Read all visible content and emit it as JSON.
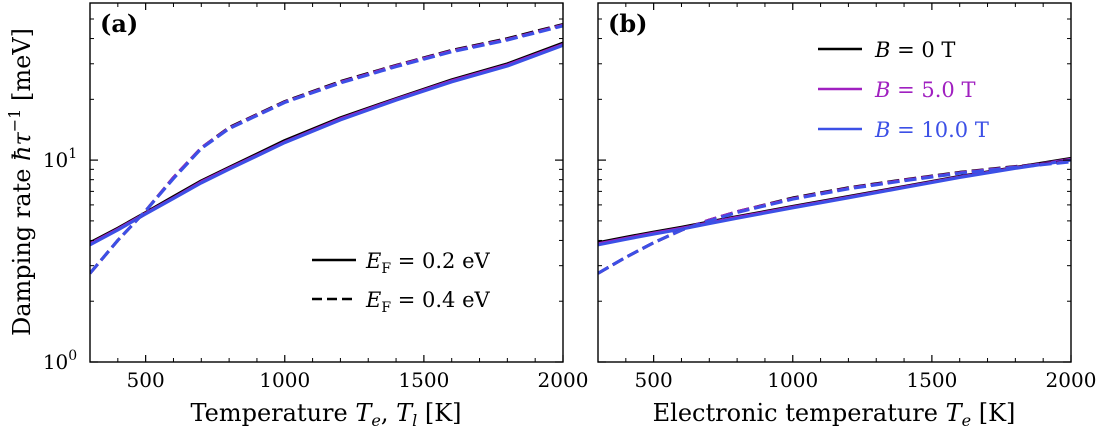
{
  "chart_data": [
    {
      "panel": "(a)",
      "type": "line",
      "xlabel": "Temperature T_e, T_l [K]",
      "xlabel_parts": {
        "main": "Temperature ",
        "v1": "T",
        "s1": "e",
        "sep": ", ",
        "v2": "T",
        "s2": "l",
        "unit": " [K]"
      },
      "ylabel": "Damping rate ħτ⁻¹ [meV]",
      "ylabel_parts": {
        "main": "Damping rate ",
        "hbar": "ħ",
        "tau": "τ",
        "sup": "−1",
        "unit": " [meV]"
      },
      "xlim": [
        300,
        2000
      ],
      "ylim": [
        1,
        60
      ],
      "yscale": "log",
      "xticks": [
        "500",
        "1000",
        "1500",
        "2000"
      ],
      "xtick_values": [
        500,
        1000,
        1500,
        2000
      ],
      "yticks": [
        {
          "base": "10",
          "exp": "0",
          "value": 1
        },
        {
          "base": "10",
          "exp": "1",
          "value": 10
        }
      ],
      "legend": {
        "placement": "lower-right",
        "entries": [
          {
            "style": "solid",
            "sym": "E",
            "sub": "F",
            "text": " = 0.2 eV"
          },
          {
            "style": "dashed",
            "sym": "E",
            "sub": "F",
            "text": " = 0.4 eV"
          }
        ]
      },
      "x": [
        300,
        400,
        500,
        600,
        700,
        800,
        1000,
        1200,
        1400,
        1600,
        1800,
        2000
      ],
      "series": [
        {
          "group": "E_F = 0.2 eV",
          "style": "solid",
          "color": "#000000",
          "values": [
            3.9,
            4.6,
            5.5,
            6.6,
            7.9,
            9.2,
            12.5,
            16.2,
            20.2,
            25.0,
            30.0,
            38.0
          ]
        },
        {
          "group": "E_F = 0.2 eV",
          "style": "solid",
          "color": "#a020c0",
          "values": [
            3.85,
            4.55,
            5.45,
            6.5,
            7.8,
            9.1,
            12.3,
            16.0,
            20.0,
            24.7,
            29.6,
            37.4
          ]
        },
        {
          "group": "E_F = 0.2 eV",
          "style": "solid",
          "color": "#3c50e6",
          "values": [
            3.8,
            4.5,
            5.4,
            6.45,
            7.7,
            9.0,
            12.2,
            15.8,
            19.8,
            24.4,
            29.2,
            37.0
          ]
        },
        {
          "group": "E_F = 0.4 eV",
          "style": "dashed",
          "color": "#000000",
          "values": [
            2.75,
            4.0,
            5.6,
            8.2,
            11.5,
            14.5,
            19.5,
            24.5,
            29.5,
            35.0,
            40.0,
            47.0
          ]
        },
        {
          "group": "E_F = 0.4 eV",
          "style": "dashed",
          "color": "#a020c0",
          "values": [
            2.75,
            4.0,
            5.6,
            8.2,
            11.5,
            14.4,
            19.4,
            24.3,
            29.3,
            34.7,
            39.6,
            46.6
          ]
        },
        {
          "group": "E_F = 0.4 eV",
          "style": "dashed",
          "color": "#3c50e6",
          "values": [
            2.75,
            4.0,
            5.6,
            8.1,
            11.4,
            14.3,
            19.3,
            24.1,
            29.0,
            34.4,
            39.3,
            46.2
          ]
        }
      ]
    },
    {
      "panel": "(b)",
      "type": "line",
      "xlabel": "Electronic temperature T_e [K]",
      "xlabel_parts": {
        "main": "Electronic temperature ",
        "v1": "T",
        "s1": "e",
        "unit": " [K]"
      },
      "xlim": [
        300,
        2000
      ],
      "ylim": [
        1,
        60
      ],
      "yscale": "log",
      "xticks": [
        "500",
        "1000",
        "1500",
        "2000"
      ],
      "xtick_values": [
        500,
        1000,
        1500,
        2000
      ],
      "legend": {
        "placement": "top-right",
        "entries": [
          {
            "color": "#000000",
            "sym": "B",
            "text": " = 0 T"
          },
          {
            "color": "#a020c0",
            "sym": "B",
            "text": " = 5.0 T"
          },
          {
            "color": "#3c50e6",
            "sym": "B",
            "text": " = 10.0 T"
          }
        ]
      },
      "x": [
        300,
        400,
        500,
        600,
        700,
        800,
        1000,
        1200,
        1400,
        1600,
        1800,
        2000
      ],
      "series": [
        {
          "group": "B = 0 T",
          "style": "solid",
          "color": "#000000",
          "values": [
            3.9,
            4.15,
            4.4,
            4.65,
            4.95,
            5.25,
            5.9,
            6.6,
            7.4,
            8.3,
            9.2,
            10.2
          ]
        },
        {
          "group": "B = 5.0 T",
          "style": "solid",
          "color": "#a020c0",
          "values": [
            3.85,
            4.1,
            4.35,
            4.6,
            4.9,
            5.2,
            5.85,
            6.55,
            7.35,
            8.25,
            9.15,
            10.1
          ]
        },
        {
          "group": "B = 10.0 T",
          "style": "solid",
          "color": "#3c50e6",
          "values": [
            3.8,
            4.05,
            4.3,
            4.55,
            4.85,
            5.15,
            5.8,
            6.5,
            7.3,
            8.2,
            9.1,
            10.0
          ]
        },
        {
          "group": "B = 0 T",
          "style": "dashed",
          "color": "#000000",
          "values": [
            2.75,
            3.3,
            3.9,
            4.5,
            5.05,
            5.55,
            6.5,
            7.3,
            8.0,
            8.7,
            9.3,
            9.9
          ]
        },
        {
          "group": "B = 5.0 T",
          "style": "dashed",
          "color": "#a020c0",
          "values": [
            2.75,
            3.3,
            3.9,
            4.5,
            5.05,
            5.55,
            6.45,
            7.25,
            7.95,
            8.65,
            9.25,
            9.85
          ]
        },
        {
          "group": "B = 10.0 T",
          "style": "dashed",
          "color": "#3c50e6",
          "values": [
            2.75,
            3.3,
            3.9,
            4.5,
            5.0,
            5.5,
            6.4,
            7.2,
            7.9,
            8.6,
            9.2,
            9.8
          ]
        }
      ]
    }
  ]
}
